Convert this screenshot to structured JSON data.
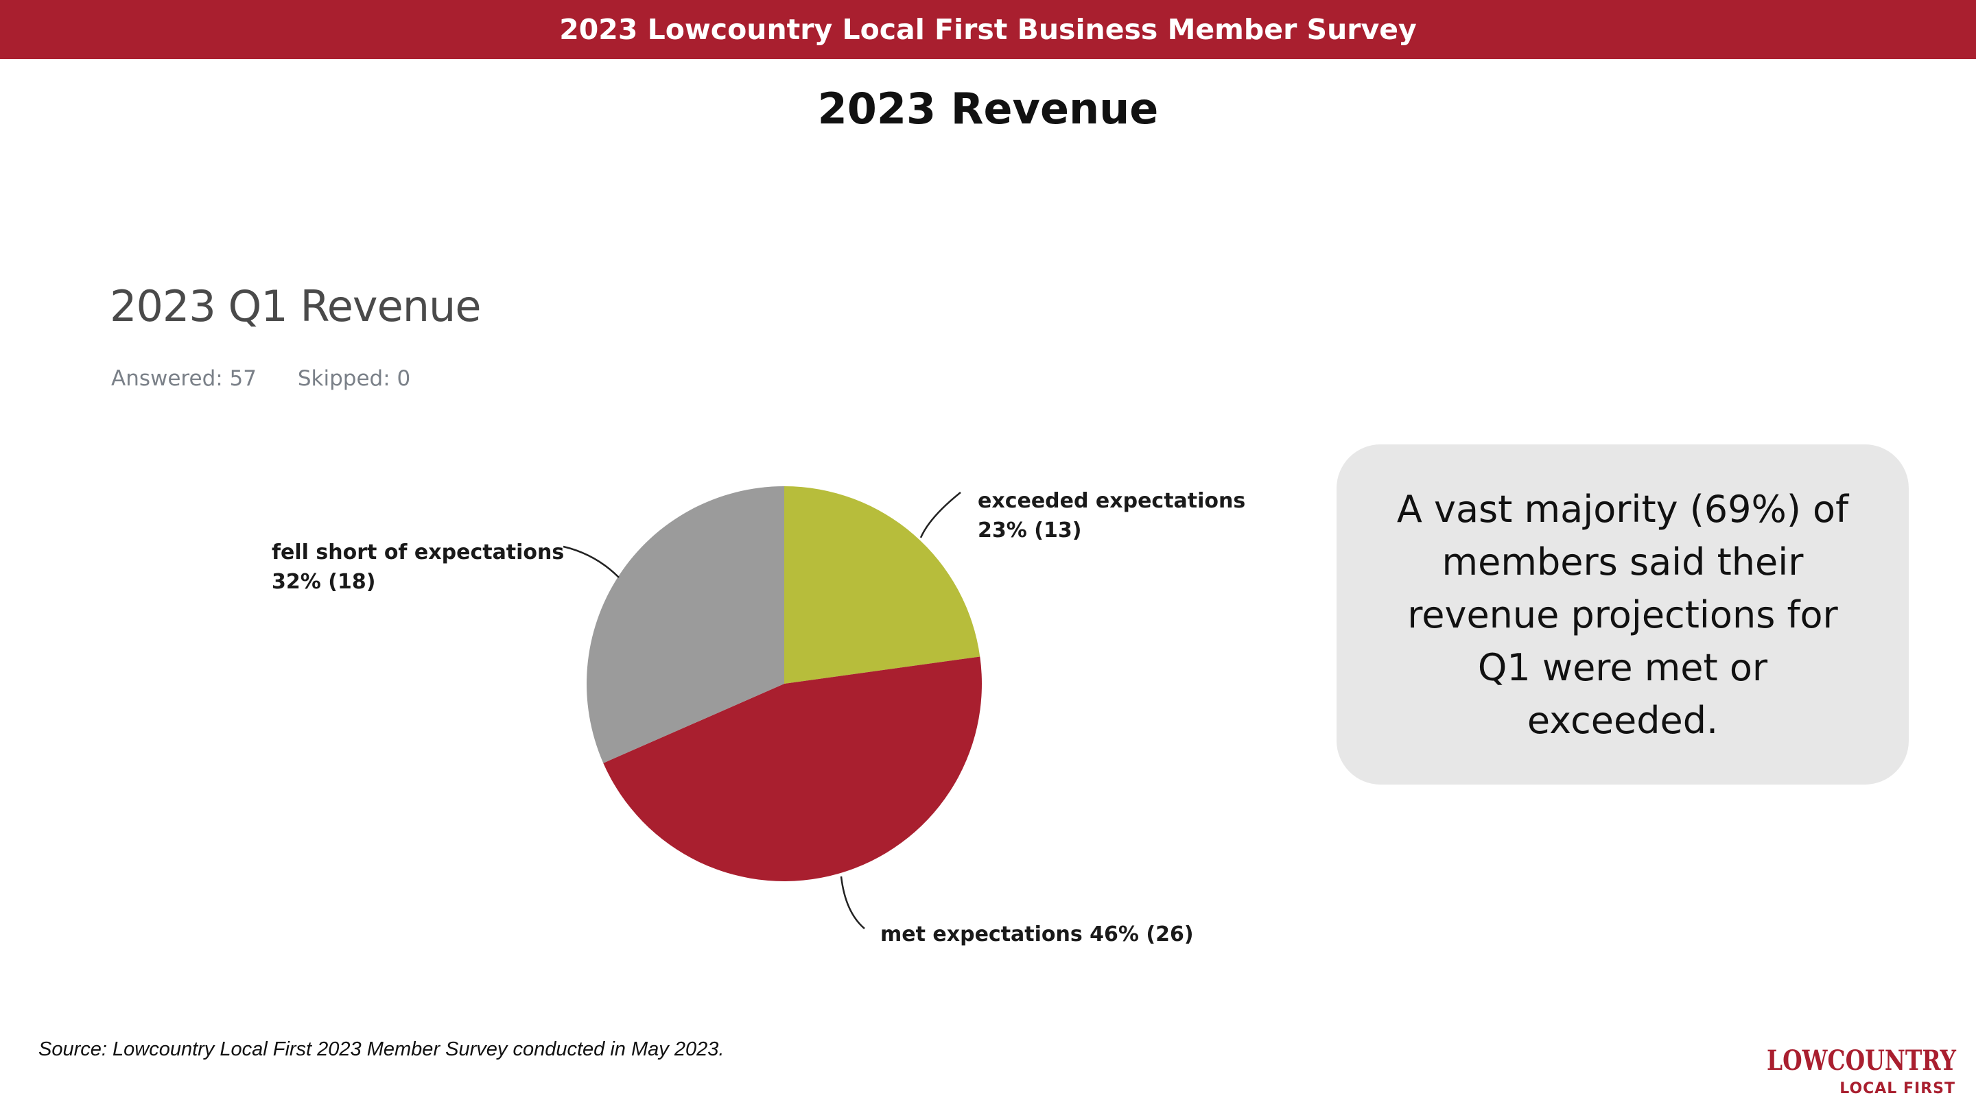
{
  "banner": {
    "title": "2023 Lowcountry Local First Business Member Survey"
  },
  "page": {
    "title": "2023 Revenue"
  },
  "question": {
    "title": "2023 Q1 Revenue",
    "answered": "Answered: 57",
    "skipped": "Skipped: 0"
  },
  "chart_data": {
    "type": "pie",
    "slices": [
      {
        "name": "exceeded expectations",
        "value": 13,
        "percent": 23,
        "label_line1": "exceeded expectations",
        "label_line2": "23% (13)",
        "color": "#b7bd3b"
      },
      {
        "name": "met expectations",
        "value": 26,
        "percent": 46,
        "label_line1": "met expectations 46% (26)",
        "label_line2": "",
        "color": "#a91f2f"
      },
      {
        "name": "fell short of expectations",
        "value": 18,
        "percent": 32,
        "label_line1": "fell short of expectations",
        "label_line2": "32% (18)",
        "color": "#9b9b9b"
      }
    ]
  },
  "callout": {
    "text": "A vast majority (69%) of members said their revenue projections for Q1 were met or exceeded."
  },
  "source": {
    "text": "Source: Lowcountry Local First 2023 Member Survey conducted in May 2023."
  },
  "logo": {
    "line1": "LOWCOUNTRY",
    "line2": "LOCAL FIRST",
    "color": "#a91f2f"
  },
  "colors": {
    "brand": "#a91f2f",
    "callout_bg": "#e7e7e7"
  }
}
